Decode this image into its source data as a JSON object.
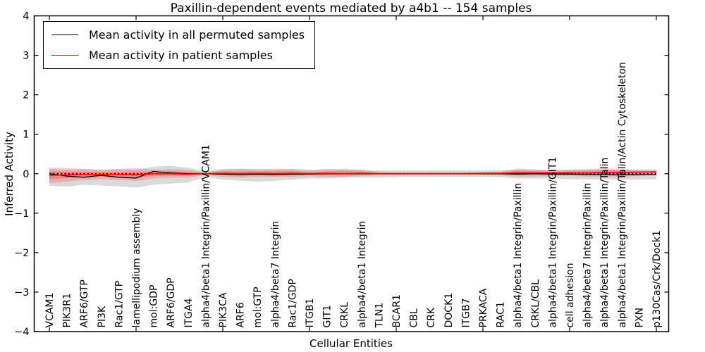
{
  "title": "Paxillin-dependent events mediated by a4b1 -- 154 samples",
  "axes": {
    "xlabel": "Cellular Entities",
    "ylabel": "Inferred Activity",
    "ylim": [
      -4,
      4
    ],
    "yticks": [
      {
        "label": "4",
        "value": 4
      },
      {
        "label": "3",
        "value": 3
      },
      {
        "label": "2",
        "value": 2
      },
      {
        "label": "1",
        "value": 1
      },
      {
        "label": "0",
        "value": 0
      },
      {
        "label": "−1",
        "value": -1
      },
      {
        "label": "−2",
        "value": -2
      },
      {
        "label": "−3",
        "value": -3
      },
      {
        "label": "−4",
        "value": -4
      }
    ]
  },
  "chart_data": {
    "type": "line",
    "title": "Paxillin-dependent events mediated by a4b1 -- 154 samples",
    "xlabel": "Cellular Entities",
    "ylabel": "Inferred Activity",
    "ylim": [
      -4,
      4
    ],
    "grid": false,
    "legend_position": "upper left",
    "zero_reference_line": true,
    "categories": [
      "VCAM1",
      "PIK3R1",
      "ARF6/GTP",
      "PI3K",
      "Rac1/GTP",
      "lamellipodium assembly",
      "mol:GDP",
      "ARF6/GDP",
      "ITGA4",
      "alpha4/beta1 Integrin/Paxillin/VCAM1",
      "PIK3CA",
      "ARF6",
      "mol:GTP",
      "alpha4/beta7 Integrin",
      "Rac1/GDP",
      "ITGB1",
      "GIT1",
      "CRKL",
      "alpha4/beta1 Integrin",
      "TLN1",
      "BCAR1",
      "CBL",
      "CRK",
      "DOCK1",
      "ITGB7",
      "PRKACA",
      "RAC1",
      "alpha4/beta1 Integrin/Paxillin",
      "CRKL/CBL",
      "alpha4/beta1 Integrin/Paxillin/GIT1",
      "cell adhesion",
      "alpha4/beta7 Integrin/Paxillin",
      "alpha4/beta1 Integrin/Paxillin/Talin",
      "alpha4/beta1 Integrin/Paxillin/Talin/Actin Cytoskeleton",
      "PXN",
      "p130Cas/Crk/Dock1"
    ],
    "series": [
      {
        "name": "Mean activity in all permuted samples",
        "color": "#000000",
        "band_color": "#8c8c8c",
        "band_opacity": 0.32,
        "values": [
          0.0,
          -0.06,
          -0.09,
          -0.04,
          -0.09,
          -0.11,
          0.06,
          0.02,
          0.0,
          0.0,
          -0.01,
          -0.02,
          -0.01,
          -0.02,
          -0.01,
          -0.01,
          0.0,
          0.0,
          0.0,
          0.0,
          0.0,
          0.0,
          0.0,
          0.0,
          0.0,
          0.0,
          0.0,
          -0.01,
          0.0,
          -0.01,
          -0.01,
          -0.02,
          -0.02,
          -0.03,
          -0.02,
          -0.02
        ],
        "band_upper": [
          0.12,
          0.1,
          0.12,
          0.1,
          0.12,
          0.1,
          0.18,
          0.2,
          0.15,
          0.06,
          0.12,
          0.13,
          0.12,
          0.1,
          0.12,
          0.1,
          0.12,
          0.1,
          0.09,
          0.08,
          0.08,
          0.08,
          0.08,
          0.08,
          0.08,
          0.08,
          0.09,
          0.1,
          0.1,
          0.1,
          0.1,
          0.1,
          0.1,
          0.1,
          0.11,
          0.12
        ],
        "band_lower": [
          -0.3,
          -0.33,
          -0.28,
          -0.3,
          -0.32,
          -0.35,
          -0.28,
          -0.25,
          -0.22,
          -0.08,
          -0.15,
          -0.18,
          -0.2,
          -0.18,
          -0.15,
          -0.12,
          -0.12,
          -0.1,
          -0.1,
          -0.1,
          -0.09,
          -0.08,
          -0.08,
          -0.08,
          -0.08,
          -0.08,
          -0.09,
          -0.12,
          -0.12,
          -0.12,
          -0.14,
          -0.14,
          -0.14,
          -0.15,
          -0.15,
          -0.14
        ]
      },
      {
        "name": "Mean activity in patient samples",
        "color": "#ff0000",
        "band_color": "#ff1e1e",
        "band_opacity": 0.22,
        "values": [
          -0.04,
          -0.03,
          -0.02,
          -0.02,
          -0.02,
          -0.03,
          0.0,
          0.0,
          -0.01,
          0.0,
          0.01,
          0.0,
          0.01,
          0.0,
          0.01,
          0.0,
          0.01,
          0.0,
          0.01,
          0.0,
          0.0,
          0.0,
          0.0,
          0.0,
          0.0,
          0.01,
          0.01,
          0.02,
          0.02,
          0.02,
          0.02,
          0.02,
          0.03,
          0.03,
          0.04,
          0.05
        ],
        "band_upper": [
          0.16,
          0.14,
          0.12,
          0.1,
          0.12,
          0.14,
          0.1,
          0.12,
          0.1,
          0.03,
          0.1,
          0.12,
          0.1,
          0.13,
          0.12,
          0.08,
          0.1,
          0.13,
          0.1,
          0.05,
          0.04,
          0.04,
          0.04,
          0.04,
          0.04,
          0.04,
          0.05,
          0.13,
          0.11,
          0.08,
          0.1,
          0.12,
          0.14,
          0.12,
          0.09,
          0.06
        ],
        "band_lower": [
          -0.24,
          -0.2,
          -0.16,
          -0.14,
          -0.16,
          -0.18,
          -0.12,
          -0.1,
          -0.1,
          -0.03,
          -0.08,
          -0.1,
          -0.08,
          -0.09,
          -0.08,
          -0.06,
          -0.08,
          -0.08,
          -0.06,
          -0.04,
          -0.04,
          -0.03,
          -0.03,
          -0.03,
          -0.03,
          -0.03,
          -0.04,
          -0.07,
          -0.07,
          -0.06,
          -0.06,
          -0.07,
          -0.08,
          -0.08,
          -0.06,
          -0.02
        ]
      }
    ]
  },
  "legend": {
    "items": [
      {
        "label": "Mean activity in all permuted samples",
        "color": "#000000"
      },
      {
        "label": "Mean activity in patient samples",
        "color": "#ff0000"
      }
    ]
  }
}
